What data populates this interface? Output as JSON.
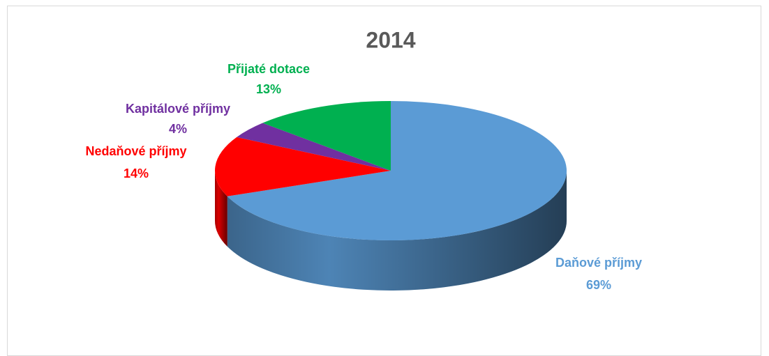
{
  "chart_data": {
    "type": "pie",
    "title": "2014",
    "categories": [
      "Daňové příjmy",
      "Nedaňové příjmy",
      "Kapitálové příjmy",
      "Přijaté dotace"
    ],
    "values": [
      69,
      14,
      4,
      13
    ],
    "value_labels": [
      "69%",
      "14%",
      "4%",
      "13%"
    ],
    "colors": [
      "#5b9bd5",
      "#ff0000",
      "#7030a0",
      "#00b050"
    ]
  }
}
